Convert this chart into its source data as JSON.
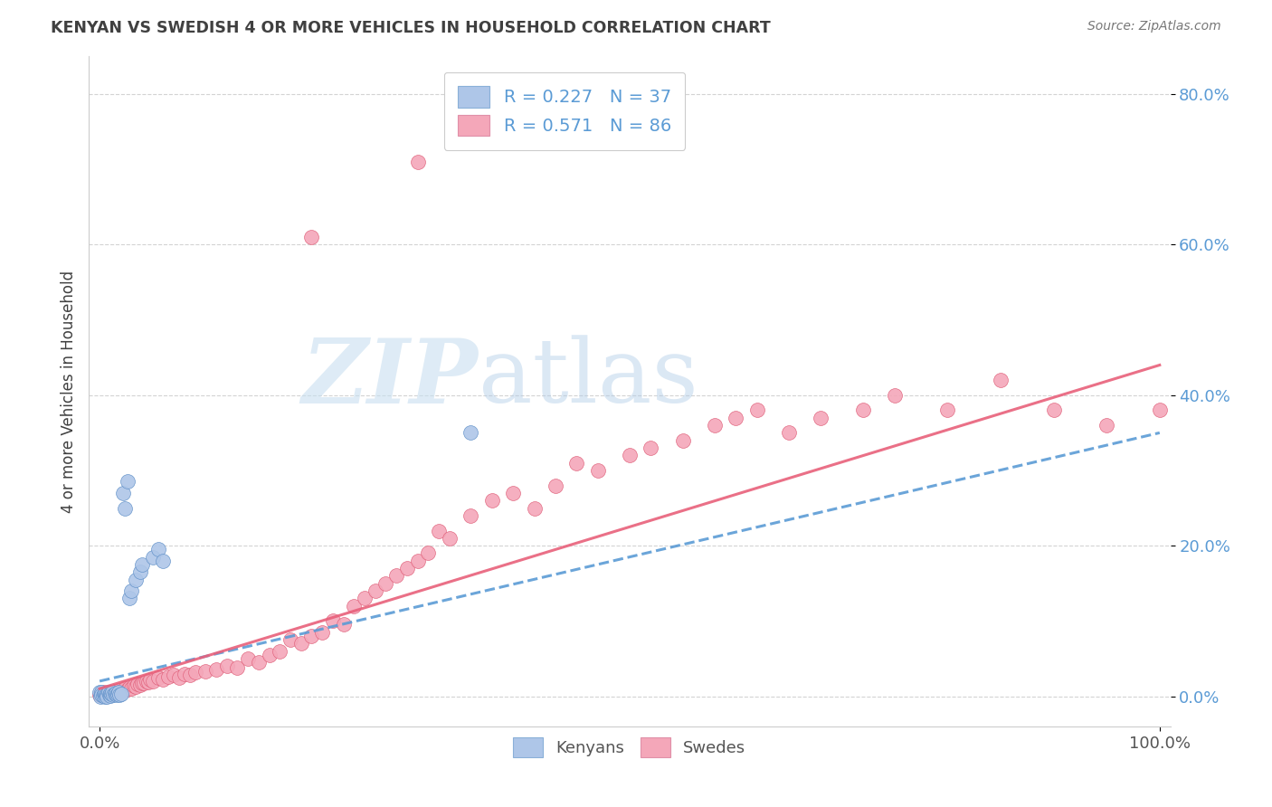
{
  "title": "KENYAN VS SWEDISH 4 OR MORE VEHICLES IN HOUSEHOLD CORRELATION CHART",
  "source": "Source: ZipAtlas.com",
  "ylabel": "4 or more Vehicles in Household",
  "xlim": [
    -0.01,
    1.01
  ],
  "ylim": [
    -0.04,
    0.85
  ],
  "yticks": [
    0.0,
    0.2,
    0.4,
    0.6,
    0.8
  ],
  "ytick_labels": [
    "0.0%",
    "20.0%",
    "40.0%",
    "60.0%",
    "80.0%"
  ],
  "xticks": [
    0.0,
    1.0
  ],
  "xtick_labels": [
    "0.0%",
    "100.0%"
  ],
  "kenyan_color": "#aec6e8",
  "swedish_color": "#f4a7b9",
  "kenyan_line_color": "#5b9bd5",
  "swedish_line_color": "#e8607a",
  "watermark_zip": "ZIP",
  "watermark_atlas": "atlas",
  "background_color": "#ffffff",
  "grid_color": "#c8c8c8",
  "tick_color": "#5b9bd5",
  "title_color": "#404040",
  "legend_label1": "R = 0.227   N = 37",
  "legend_label2": "R = 0.571   N = 86",
  "bottom_legend_label1": "Kenyans",
  "bottom_legend_label2": "Swedes",
  "kenyan_x": [
    0.0,
    0.001,
    0.002,
    0.002,
    0.003,
    0.004,
    0.005,
    0.005,
    0.006,
    0.007,
    0.007,
    0.008,
    0.009,
    0.01,
    0.01,
    0.011,
    0.012,
    0.013,
    0.014,
    0.015,
    0.016,
    0.017,
    0.018,
    0.019,
    0.02,
    0.022,
    0.024,
    0.026,
    0.028,
    0.03,
    0.034,
    0.038,
    0.04,
    0.05,
    0.055,
    0.06,
    0.35
  ],
  "kenyan_y": [
    0.005,
    0.0,
    0.005,
    0.002,
    0.001,
    0.003,
    0.0,
    0.004,
    0.002,
    0.003,
    0.0,
    0.005,
    0.002,
    0.001,
    0.004,
    0.003,
    0.005,
    0.002,
    0.003,
    0.004,
    0.002,
    0.003,
    0.005,
    0.002,
    0.003,
    0.27,
    0.25,
    0.285,
    0.13,
    0.14,
    0.155,
    0.165,
    0.175,
    0.185,
    0.195,
    0.18,
    0.35
  ],
  "swedish_x": [
    0.0,
    0.002,
    0.003,
    0.004,
    0.005,
    0.006,
    0.007,
    0.008,
    0.009,
    0.01,
    0.012,
    0.014,
    0.016,
    0.018,
    0.02,
    0.022,
    0.024,
    0.026,
    0.028,
    0.03,
    0.032,
    0.034,
    0.036,
    0.038,
    0.04,
    0.042,
    0.044,
    0.046,
    0.048,
    0.05,
    0.055,
    0.06,
    0.065,
    0.07,
    0.075,
    0.08,
    0.085,
    0.09,
    0.1,
    0.11,
    0.12,
    0.13,
    0.14,
    0.15,
    0.16,
    0.17,
    0.18,
    0.19,
    0.2,
    0.21,
    0.22,
    0.23,
    0.24,
    0.25,
    0.26,
    0.27,
    0.28,
    0.29,
    0.3,
    0.31,
    0.32,
    0.33,
    0.35,
    0.37,
    0.39,
    0.41,
    0.43,
    0.45,
    0.47,
    0.5,
    0.52,
    0.55,
    0.58,
    0.6,
    0.62,
    0.65,
    0.68,
    0.72,
    0.75,
    0.8,
    0.85,
    0.9,
    0.95,
    1.0,
    0.2,
    0.3
  ],
  "swedish_y": [
    0.002,
    0.004,
    0.003,
    0.005,
    0.002,
    0.004,
    0.003,
    0.005,
    0.003,
    0.004,
    0.006,
    0.007,
    0.006,
    0.008,
    0.007,
    0.008,
    0.01,
    0.009,
    0.012,
    0.01,
    0.014,
    0.013,
    0.016,
    0.015,
    0.018,
    0.017,
    0.02,
    0.019,
    0.022,
    0.02,
    0.025,
    0.022,
    0.026,
    0.028,
    0.025,
    0.03,
    0.028,
    0.032,
    0.033,
    0.035,
    0.04,
    0.038,
    0.05,
    0.045,
    0.055,
    0.06,
    0.075,
    0.07,
    0.08,
    0.085,
    0.1,
    0.095,
    0.12,
    0.13,
    0.14,
    0.15,
    0.16,
    0.17,
    0.18,
    0.19,
    0.22,
    0.21,
    0.24,
    0.26,
    0.27,
    0.25,
    0.28,
    0.31,
    0.3,
    0.32,
    0.33,
    0.34,
    0.36,
    0.37,
    0.38,
    0.35,
    0.37,
    0.38,
    0.4,
    0.38,
    0.42,
    0.38,
    0.36,
    0.38,
    0.61,
    0.71
  ],
  "kenyan_line_x": [
    0.0,
    1.0
  ],
  "kenyan_line_y": [
    0.02,
    0.35
  ],
  "swedish_line_x": [
    0.0,
    1.0
  ],
  "swedish_line_y": [
    0.01,
    0.44
  ]
}
